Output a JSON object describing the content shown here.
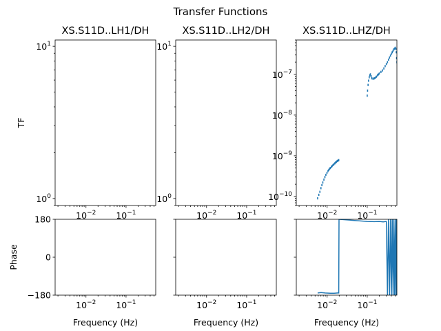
{
  "figure": {
    "suptitle": "Transfer Functions"
  },
  "chart_data": [
    {
      "type": "scatter",
      "panel": "tf",
      "column": 0,
      "title": "XS.S11D..LH1/DH",
      "ylabel": "TF",
      "xlabel": "",
      "xscale": "log",
      "yscale": "log",
      "xlim": [
        0.0017,
        0.55
      ],
      "ylim": [
        0.9,
        11
      ],
      "x_ticks": [
        "10^-2",
        "10^-1"
      ],
      "y_ticks": [
        "10^0",
        "10^1"
      ],
      "series": [
        {
          "points": []
        }
      ]
    },
    {
      "type": "scatter",
      "panel": "tf",
      "column": 1,
      "title": "XS.S11D..LH2/DH",
      "ylabel": "",
      "xlabel": "",
      "xscale": "log",
      "yscale": "log",
      "xlim": [
        0.0017,
        0.55
      ],
      "ylim": [
        0.9,
        11
      ],
      "x_ticks": [
        "10^-2",
        "10^-1"
      ],
      "y_ticks": [
        "10^0",
        "10^1"
      ],
      "series": [
        {
          "points": []
        }
      ]
    },
    {
      "type": "scatter",
      "panel": "tf",
      "column": 2,
      "title": "XS.S11D..LHZ/DH",
      "ylabel": "",
      "xlabel": "",
      "xscale": "log",
      "yscale": "log",
      "xlim": [
        0.0017,
        0.55
      ],
      "ylim": [
        6e-11,
        7e-07
      ],
      "x_ticks": [
        "10^-2",
        "10^-1"
      ],
      "y_ticks": [
        "10^-10",
        "10^-9",
        "10^-8",
        "10^-7"
      ],
      "color": "#1f77b4",
      "series": [
        {
          "points": [
            [
              0.0058,
              9e-11
            ],
            [
              0.0062,
              1.1e-10
            ],
            [
              0.0066,
              1.3e-10
            ],
            [
              0.007,
              1.6e-10
            ],
            [
              0.0074,
              1.9e-10
            ],
            [
              0.0078,
              2.2e-10
            ],
            [
              0.0083,
              2.6e-10
            ],
            [
              0.0088,
              3e-10
            ],
            [
              0.0093,
              3.4e-10
            ],
            [
              0.0099,
              3.8e-10
            ],
            [
              0.0105,
              4.2e-10
            ],
            [
              0.011,
              4.5e-10
            ],
            [
              0.0115,
              4.8e-10
            ],
            [
              0.012,
              5e-10
            ],
            [
              0.0127,
              5.3e-10
            ],
            [
              0.0133,
              5.6e-10
            ],
            [
              0.014,
              5.9e-10
            ],
            [
              0.0147,
              6.2e-10
            ],
            [
              0.0155,
              6.5e-10
            ],
            [
              0.0162,
              6.8e-10
            ],
            [
              0.017,
              7.1e-10
            ],
            [
              0.0178,
              7.4e-10
            ],
            [
              0.0186,
              7.6e-10
            ],
            [
              0.0195,
              7.8e-10
            ],
            [
              0.1,
              3e-08
            ],
            [
              0.102,
              4e-08
            ],
            [
              0.105,
              5.5e-08
            ],
            [
              0.108,
              7e-08
            ],
            [
              0.112,
              8.5e-08
            ],
            [
              0.116,
              9.5e-08
            ],
            [
              0.12,
              1e-07
            ],
            [
              0.125,
              9e-08
            ],
            [
              0.13,
              8e-08
            ],
            [
              0.14,
              7.8e-08
            ],
            [
              0.15,
              8e-08
            ],
            [
              0.16,
              8.3e-08
            ],
            [
              0.17,
              8.8e-08
            ],
            [
              0.18,
              9.5e-08
            ],
            [
              0.19,
              1e-07
            ],
            [
              0.2,
              1.05e-07
            ],
            [
              0.22,
              1.15e-07
            ],
            [
              0.24,
              1.25e-07
            ],
            [
              0.26,
              1.4e-07
            ],
            [
              0.28,
              1.6e-07
            ],
            [
              0.3,
              1.8e-07
            ],
            [
              0.32,
              2e-07
            ],
            [
              0.34,
              2.3e-07
            ],
            [
              0.36,
              2.6e-07
            ],
            [
              0.38,
              2.9e-07
            ],
            [
              0.4,
              3.2e-07
            ],
            [
              0.42,
              3.5e-07
            ],
            [
              0.44,
              3.8e-07
            ],
            [
              0.46,
              4.1e-07
            ],
            [
              0.48,
              4.3e-07
            ],
            [
              0.5,
              4.5e-07
            ],
            [
              0.52,
              4.2e-07
            ],
            [
              0.53,
              3.5e-07
            ],
            [
              0.54,
              2.5e-07
            ],
            [
              0.55,
              2e-07
            ]
          ]
        }
      ]
    },
    {
      "type": "line",
      "panel": "phase",
      "column": 0,
      "ylabel": "Phase",
      "xlabel": "Frequency (Hz)",
      "xscale": "log",
      "ylim": [
        -180,
        180
      ],
      "xlim": [
        0.0017,
        0.55
      ],
      "x_ticks": [
        "10^-2",
        "10^-1"
      ],
      "y_ticks": [
        "180",
        "0",
        "−180"
      ],
      "series": [
        {
          "points": []
        }
      ]
    },
    {
      "type": "line",
      "panel": "phase",
      "column": 1,
      "ylabel": "",
      "xlabel": "Frequency (Hz)",
      "xscale": "log",
      "ylim": [
        -180,
        180
      ],
      "xlim": [
        0.0017,
        0.55
      ],
      "x_ticks": [
        "10^-2",
        "10^-1"
      ],
      "y_ticks": [],
      "series": [
        {
          "points": []
        }
      ]
    },
    {
      "type": "line",
      "panel": "phase",
      "column": 2,
      "ylabel": "",
      "xlabel": "Frequency (Hz)",
      "xscale": "log",
      "ylim": [
        -180,
        180
      ],
      "xlim": [
        0.0017,
        0.55
      ],
      "x_ticks": [
        "10^-2",
        "10^-1"
      ],
      "y_ticks": [],
      "color": "#1f77b4",
      "series": [
        {
          "points": [
            [
              0.0058,
              -170
            ],
            [
              0.007,
              -168
            ],
            [
              0.009,
              -170
            ],
            [
              0.012,
              -171
            ],
            [
              0.015,
              -171
            ],
            [
              0.018,
              -170
            ],
            [
              0.0195,
              -170
            ],
            [
              0.0198,
              180
            ],
            [
              0.1,
              170
            ],
            [
              0.15,
              169
            ],
            [
              0.2,
              170
            ],
            [
              0.25,
              168
            ],
            [
              0.3,
              170
            ],
            [
              0.32,
              -180
            ],
            [
              0.34,
              180
            ],
            [
              0.36,
              -180
            ],
            [
              0.38,
              180
            ],
            [
              0.4,
              -180
            ],
            [
              0.42,
              180
            ],
            [
              0.44,
              -180
            ],
            [
              0.46,
              180
            ],
            [
              0.48,
              -180
            ],
            [
              0.5,
              180
            ],
            [
              0.52,
              -180
            ],
            [
              0.54,
              180
            ],
            [
              0.55,
              -180
            ]
          ]
        }
      ]
    }
  ]
}
